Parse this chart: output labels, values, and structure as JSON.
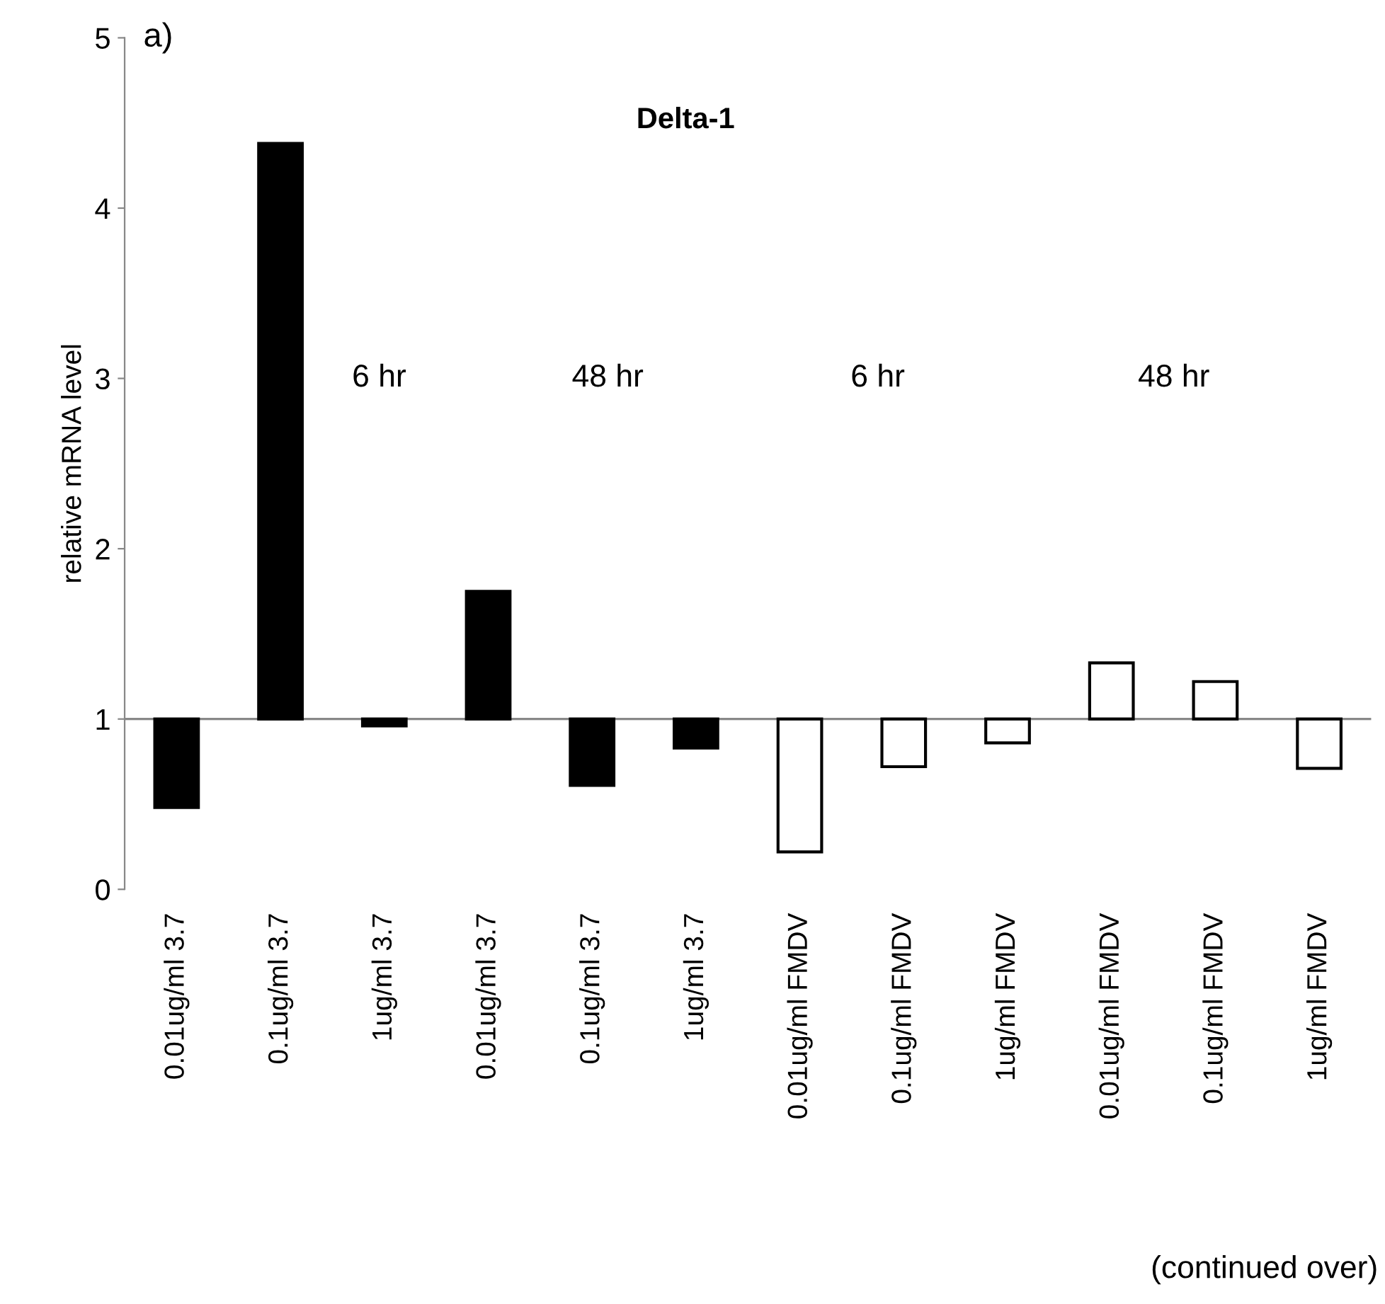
{
  "chart_data": {
    "type": "bar",
    "title": "Delta-1",
    "ylabel": "relative mRNA level",
    "categories": [
      "0.01ug/ml 3.7",
      "0.1ug/ml 3.7",
      "1ug/ml 3.7",
      "0.01ug/ml 3.7",
      "0.1ug/ml 3.7",
      "1ug/ml 3.7",
      "0.01ug/ml FMDV",
      "0.1ug/ml FMDV",
      "1ug/ml FMDV",
      "0.01ug/ml FMDV",
      "0.1ug/ml FMDV",
      "1ug/ml FMDV"
    ],
    "base": [
      1,
      1,
      1,
      1,
      1,
      1,
      1,
      1,
      1,
      1,
      1,
      1
    ],
    "values": [
      -0.52,
      3.38,
      -0.04,
      0.75,
      -0.39,
      -0.17,
      -0.78,
      -0.28,
      -0.14,
      0.33,
      0.22,
      -0.29
    ],
    "colors": [
      "#000000",
      "#000000",
      "#000000",
      "#000000",
      "#000000",
      "#000000",
      "#ffffff",
      "#ffffff",
      "#ffffff",
      "#ffffff",
      "#ffffff",
      "#ffffff"
    ],
    "ylim": [
      0,
      5
    ],
    "yticks": [
      0,
      1,
      2,
      3,
      4,
      5
    ],
    "ref_lines": [
      {
        "axis": "y",
        "value": 1,
        "color": "#888888"
      }
    ],
    "annotations": [
      "a)",
      "6 hr",
      "48 hr",
      "6 hr",
      "48 hr",
      "(continued over)"
    ]
  }
}
